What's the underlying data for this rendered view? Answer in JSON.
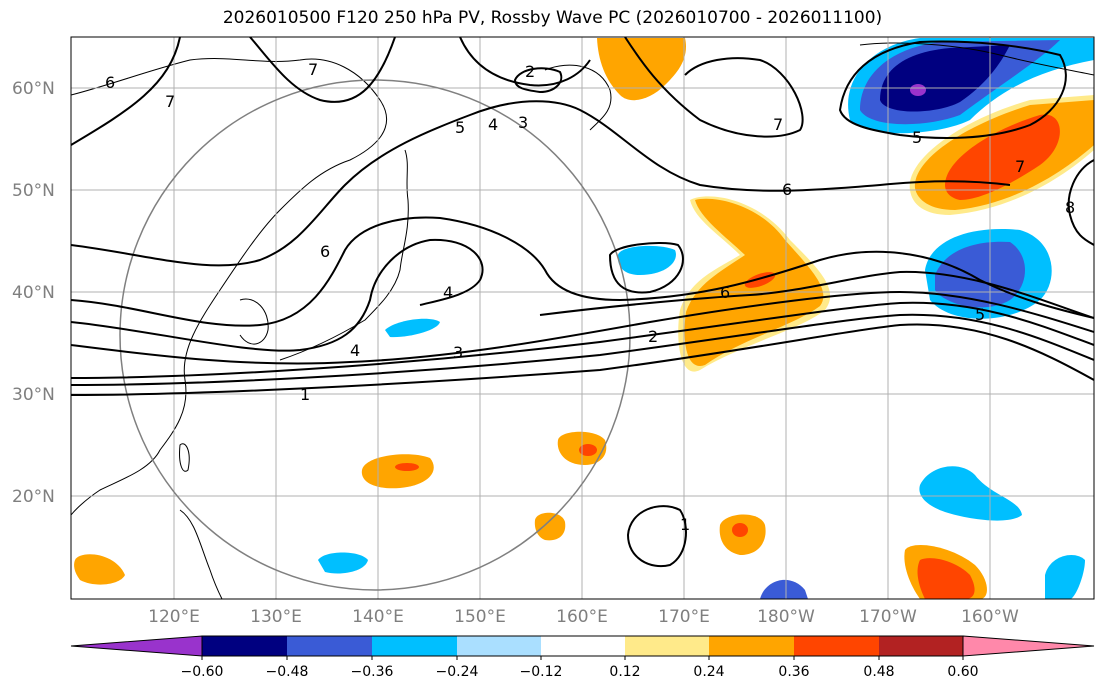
{
  "title": "2026010500 F120 250 hPa PV, Rossby Wave PC (2026010700 - 2026011100)",
  "colors": {
    "land_line": "#000000",
    "grid": "#b0b0b0",
    "circle": "#808080",
    "bins": [
      "#9933cc",
      "#000080",
      "#3a5bd6",
      "#00bfff",
      "#aadfff",
      "#ffffff",
      "#ffea8a",
      "#ffa500",
      "#ff4500",
      "#b22222",
      "#ff88aa"
    ]
  },
  "lat_labels": [
    "60°N",
    "50°N",
    "40°N",
    "30°N",
    "20°N"
  ],
  "lon_labels": [
    "120°E",
    "130°E",
    "140°E",
    "150°E",
    "160°E",
    "170°E",
    "180°W",
    "170°W",
    "160°W"
  ],
  "colorbar_ticks": [
    "−0.60",
    "−0.48",
    "−0.36",
    "−0.24",
    "−0.12",
    "0.12",
    "0.24",
    "0.36",
    "0.48",
    "0.60"
  ],
  "contour_labels": [
    "6",
    "7",
    "7",
    "2",
    "5",
    "4",
    "3",
    "7",
    "6",
    "5",
    "7",
    "8",
    "6",
    "4",
    "4",
    "6",
    "2",
    "3",
    "1",
    "1",
    "5"
  ]
}
